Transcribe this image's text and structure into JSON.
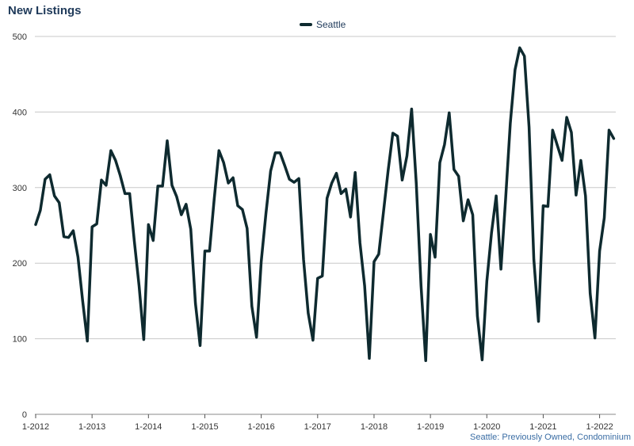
{
  "chart_data": {
    "type": "line",
    "title": "New Listings",
    "xlabel": "",
    "ylabel": "",
    "ylim": [
      0,
      500
    ],
    "yticks": [
      0,
      100,
      200,
      300,
      400,
      500
    ],
    "xtick_labels": [
      "1-2012",
      "1-2013",
      "1-2014",
      "1-2015",
      "1-2016",
      "1-2017",
      "1-2018",
      "1-2019",
      "1-2020",
      "1-2021",
      "1-2022"
    ],
    "x_start": "2012-01",
    "grid": true,
    "legend_position": "top-center",
    "series_color": "#0e2a2f",
    "series": [
      {
        "name": "Seattle",
        "values": [
          251,
          270,
          311,
          317,
          289,
          280,
          235,
          234,
          243,
          208,
          150,
          97,
          248,
          252,
          310,
          303,
          349,
          336,
          316,
          292,
          292,
          229,
          170,
          99,
          251,
          230,
          302,
          302,
          362,
          303,
          288,
          264,
          278,
          245,
          147,
          91,
          216,
          216,
          285,
          349,
          333,
          306,
          313,
          276,
          271,
          246,
          143,
          102,
          202,
          266,
          322,
          346,
          346,
          329,
          311,
          307,
          312,
          205,
          134,
          98,
          180,
          183,
          286,
          306,
          319,
          292,
          298,
          261,
          320,
          227,
          170,
          74,
          202,
          212,
          267,
          323,
          372,
          368,
          310,
          342,
          404,
          305,
          170,
          71,
          238,
          208,
          333,
          357,
          399,
          324,
          315,
          256,
          284,
          264,
          130,
          72,
          176,
          240,
          289,
          192,
          285,
          385,
          456,
          485,
          474,
          380,
          205,
          123,
          276,
          275,
          376,
          356,
          336,
          393,
          373,
          290,
          336,
          289,
          160,
          101,
          216,
          260,
          376,
          365
        ]
      }
    ],
    "footnote": "Seattle: Previously Owned, Condominium"
  }
}
